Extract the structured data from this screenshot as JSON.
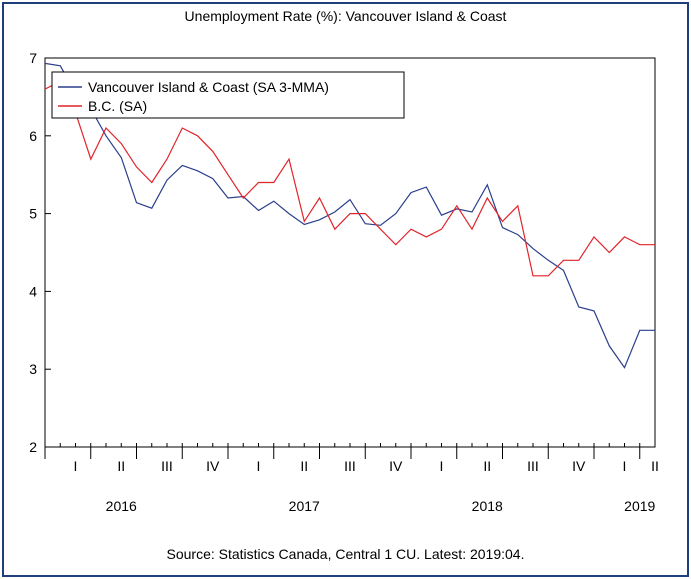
{
  "chart_data": {
    "type": "line",
    "title": "Unemployment Rate (%): Vancouver Island & Coast",
    "source": "Source: Statistics Canada, Central 1 CU. Latest: 2019:04.",
    "xlabel": "",
    "ylabel": "",
    "ylim": [
      2,
      7
    ],
    "yticks": [
      2,
      3,
      4,
      5,
      6,
      7
    ],
    "grid": false,
    "legend_position": "top-left",
    "x_start": "2015-12",
    "x_end": "2019-04",
    "quarter_labels": [
      {
        "label": "I",
        "month": "2016-02"
      },
      {
        "label": "II",
        "month": "2016-05"
      },
      {
        "label": "III",
        "month": "2016-08"
      },
      {
        "label": "IV",
        "month": "2016-11"
      },
      {
        "label": "I",
        "month": "2017-02"
      },
      {
        "label": "II",
        "month": "2017-05"
      },
      {
        "label": "III",
        "month": "2017-08"
      },
      {
        "label": "IV",
        "month": "2017-11"
      },
      {
        "label": "I",
        "month": "2018-02"
      },
      {
        "label": "II",
        "month": "2018-05"
      },
      {
        "label": "III",
        "month": "2018-08"
      },
      {
        "label": "IV",
        "month": "2018-11"
      },
      {
        "label": "I",
        "month": "2019-02"
      },
      {
        "label": "II",
        "month": "2019-04"
      }
    ],
    "year_labels": [
      {
        "label": "2016",
        "month": "2016-05"
      },
      {
        "label": "2017",
        "month": "2017-05"
      },
      {
        "label": "2018",
        "month": "2018-05"
      },
      {
        "label": "2019",
        "month": "2019-03"
      }
    ],
    "x": [
      "2015-12",
      "2016-01",
      "2016-02",
      "2016-03",
      "2016-04",
      "2016-05",
      "2016-06",
      "2016-07",
      "2016-08",
      "2016-09",
      "2016-10",
      "2016-11",
      "2016-12",
      "2017-01",
      "2017-02",
      "2017-03",
      "2017-04",
      "2017-05",
      "2017-06",
      "2017-07",
      "2017-08",
      "2017-09",
      "2017-10",
      "2017-11",
      "2017-12",
      "2018-01",
      "2018-02",
      "2018-03",
      "2018-04",
      "2018-05",
      "2018-06",
      "2018-07",
      "2018-08",
      "2018-09",
      "2018-10",
      "2018-11",
      "2018-12",
      "2019-01",
      "2019-02",
      "2019-03",
      "2019-04"
    ],
    "series": [
      {
        "name": "Vancouver Island & Coast (SA 3-MMA)",
        "color": "#2b3f8c",
        "values": [
          6.93,
          6.9,
          6.55,
          6.35,
          6.0,
          5.72,
          5.14,
          5.07,
          5.43,
          5.62,
          5.55,
          5.45,
          5.2,
          5.22,
          5.04,
          5.16,
          5.0,
          4.86,
          4.92,
          5.02,
          5.18,
          4.87,
          4.85,
          5.0,
          5.27,
          5.34,
          4.98,
          5.06,
          5.02,
          5.37,
          4.82,
          4.73,
          4.55,
          4.4,
          4.27,
          3.8,
          3.75,
          3.3,
          3.02,
          3.5,
          3.5
        ]
      },
      {
        "name": "B.C. (SA)",
        "color": "#e0242a",
        "values": [
          6.6,
          6.7,
          6.3,
          5.7,
          6.1,
          5.9,
          5.6,
          5.4,
          5.7,
          6.1,
          6.0,
          5.8,
          5.5,
          5.2,
          5.4,
          5.4,
          5.7,
          4.9,
          5.2,
          4.8,
          5.0,
          5.0,
          4.8,
          4.6,
          4.8,
          4.7,
          4.8,
          5.1,
          4.8,
          5.2,
          4.9,
          5.1,
          4.2,
          4.2,
          4.4,
          4.4,
          4.7,
          4.5,
          4.7,
          4.6,
          4.6
        ]
      }
    ]
  }
}
